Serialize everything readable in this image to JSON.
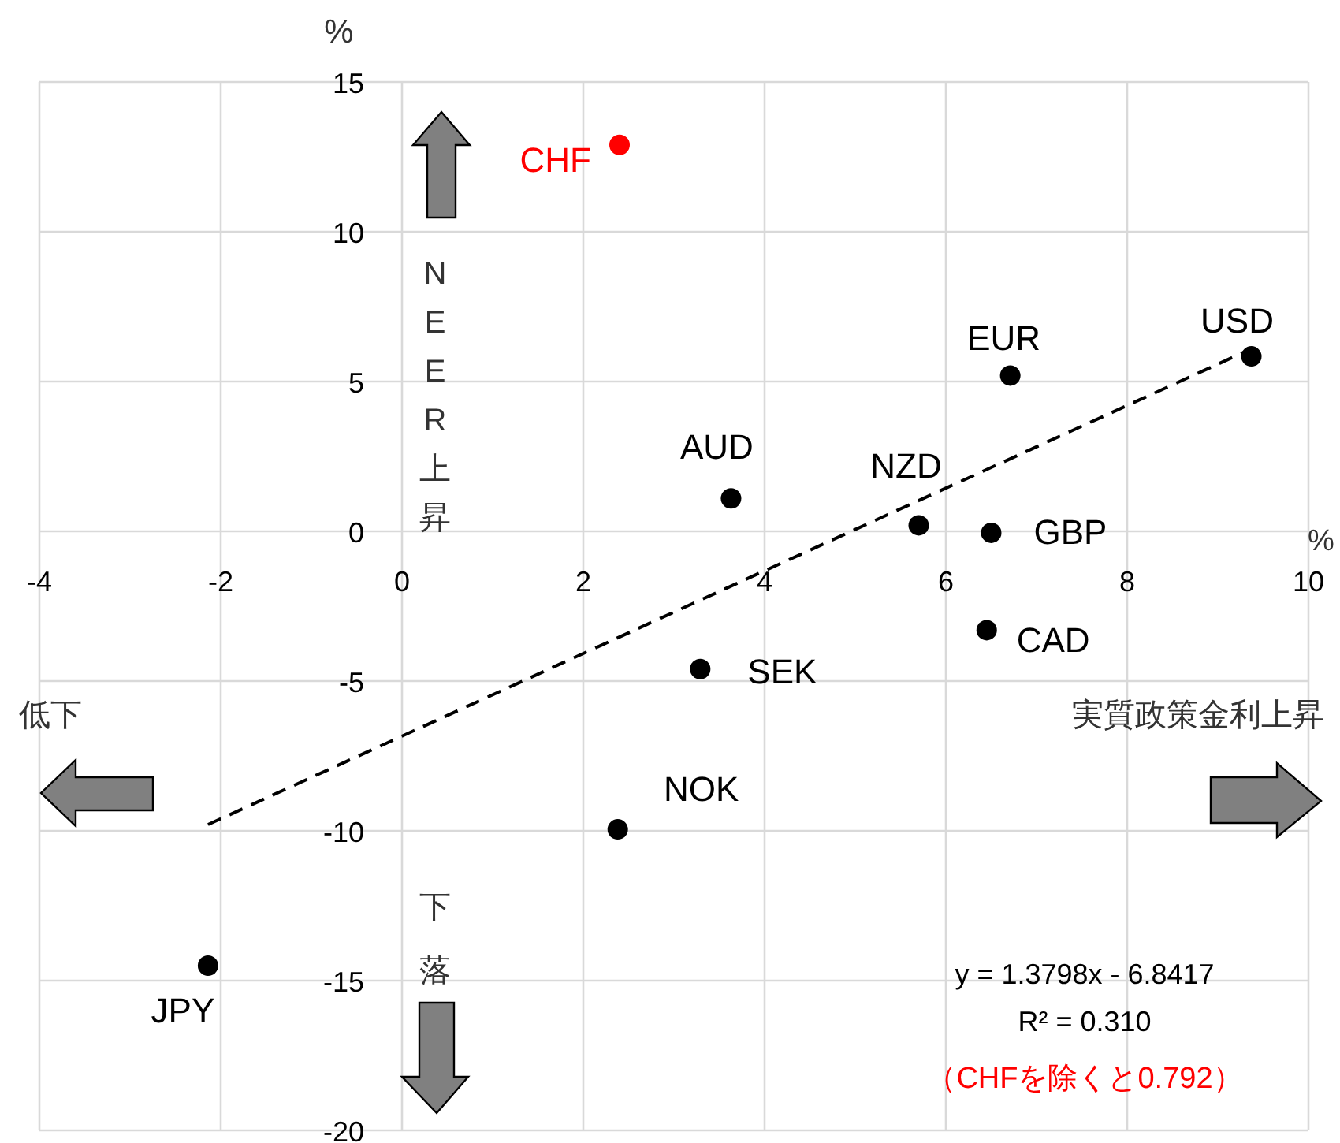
{
  "chart_data": {
    "type": "scatter",
    "xlabel": "%",
    "ylabel": "%",
    "xlim": [
      -4,
      10
    ],
    "xticks": [
      -4,
      -2,
      0,
      2,
      4,
      6,
      8,
      10
    ],
    "ylim": [
      -20,
      15
    ],
    "yticks": [
      -20,
      -15,
      -10,
      -5,
      0,
      5,
      10,
      15
    ],
    "grid": true,
    "series": [
      {
        "name": "CHF",
        "color": "#ff0000",
        "marker": "circle",
        "x": [
          2.4
        ],
        "values": [
          12.9
        ]
      },
      {
        "name": "EUR",
        "color": "#000000",
        "marker": "circle",
        "x": [
          6.71
        ],
        "values": [
          5.2
        ]
      },
      {
        "name": "USD",
        "color": "#000000",
        "marker": "circle",
        "x": [
          9.37
        ],
        "values": [
          5.84
        ]
      },
      {
        "name": "AUD",
        "color": "#000000",
        "marker": "circle",
        "x": [
          3.63
        ],
        "values": [
          1.1
        ]
      },
      {
        "name": "NZD",
        "color": "#000000",
        "marker": "circle",
        "x": [
          5.7
        ],
        "values": [
          0.2
        ]
      },
      {
        "name": "GBP",
        "color": "#000000",
        "marker": "circle",
        "x": [
          6.5
        ],
        "values": [
          -0.05
        ]
      },
      {
        "name": "CAD",
        "color": "#000000",
        "marker": "circle",
        "x": [
          6.45
        ],
        "values": [
          -3.3
        ]
      },
      {
        "name": "SEK",
        "color": "#000000",
        "marker": "circle",
        "x": [
          3.29
        ],
        "values": [
          -4.6
        ]
      },
      {
        "name": "NOK",
        "color": "#000000",
        "marker": "circle",
        "x": [
          2.38
        ],
        "values": [
          -9.95
        ]
      },
      {
        "name": "JPY",
        "color": "#000000",
        "marker": "circle",
        "x": [
          -2.14
        ],
        "values": [
          -14.5
        ]
      },
      {
        "type": "line",
        "color": "#000000",
        "line_style": "dashed",
        "marker": "none",
        "x": [
          -2.14,
          9.37
        ],
        "values": [
          -9.79,
          6.09
        ]
      }
    ],
    "annotations": [
      "NEER上昇",
      "下落",
      "低下",
      "実質政策金利上昇",
      "y = 1.3798x - 6.8417",
      "R² = 0.310",
      "（CHFを除くと0.792）"
    ]
  }
}
